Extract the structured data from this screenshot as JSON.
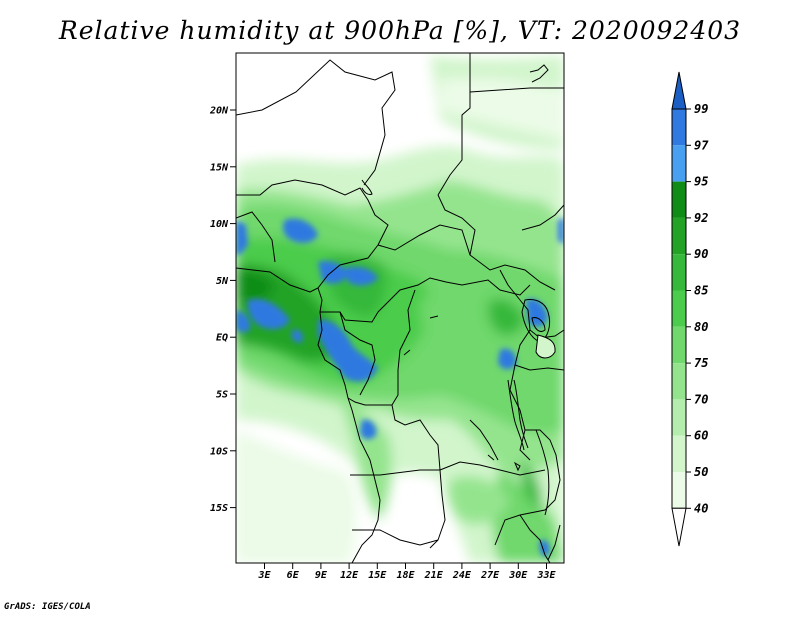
{
  "title": "Relative humidity at 900hPa [%], VT: 2020092403",
  "credit": "GrADS: IGES/COLA",
  "map": {
    "lat_labels": [
      "20N",
      "15N",
      "10N",
      "5N",
      "EQ",
      "5S",
      "10S",
      "15S"
    ],
    "lon_labels": [
      "3E",
      "6E",
      "9E",
      "12E",
      "15E",
      "18E",
      "21E",
      "24E",
      "27E",
      "30E",
      "33E"
    ]
  },
  "colorbar": {
    "levels": [
      "99",
      "97",
      "95",
      "92",
      "90",
      "85",
      "80",
      "75",
      "70",
      "60",
      "50",
      "40"
    ],
    "colors": [
      "#1c5fc4",
      "#2f79e0",
      "#4aa0f0",
      "#0f8c16",
      "#22a326",
      "#36b83a",
      "#4ccc4c",
      "#70d86c",
      "#94e48e",
      "#b4edae",
      "#d2f5cc",
      "#ebfbe7",
      "#ffffff"
    ]
  }
}
